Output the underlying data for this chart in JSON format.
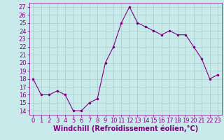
{
  "x": [
    0,
    1,
    2,
    3,
    4,
    5,
    6,
    7,
    8,
    9,
    10,
    11,
    12,
    13,
    14,
    15,
    16,
    17,
    18,
    19,
    20,
    21,
    22,
    23
  ],
  "y": [
    18,
    16,
    16,
    16.5,
    16,
    14,
    14,
    15,
    15.5,
    20,
    22,
    25,
    27,
    25,
    24.5,
    24,
    23.5,
    24,
    23.5,
    23.5,
    22,
    20.5,
    18,
    18.5
  ],
  "line_color": "#800080",
  "marker": ".",
  "marker_size": 3,
  "bg_color": "#c8eaea",
  "grid_color": "#a8cccc",
  "xlabel": "Windchill (Refroidissement éolien,°C)",
  "ylabel_ticks": [
    14,
    15,
    16,
    17,
    18,
    19,
    20,
    21,
    22,
    23,
    24,
    25,
    26,
    27
  ],
  "xlim": [
    -0.5,
    23.5
  ],
  "ylim": [
    13.5,
    27.5
  ],
  "xticks": [
    0,
    1,
    2,
    3,
    4,
    5,
    6,
    7,
    8,
    9,
    10,
    11,
    12,
    13,
    14,
    15,
    16,
    17,
    18,
    19,
    20,
    21,
    22,
    23
  ],
  "tick_fontsize": 6,
  "label_fontsize": 7,
  "label_color": "#800080",
  "tick_color": "#800080"
}
